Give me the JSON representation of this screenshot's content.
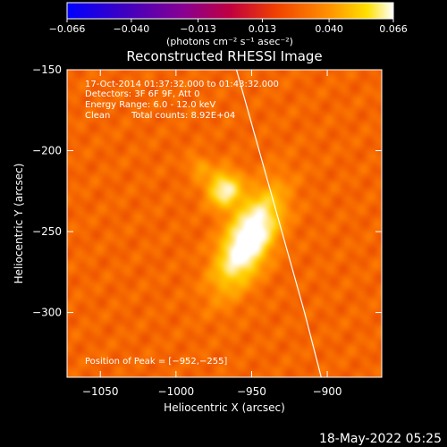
{
  "chart_data": {
    "type": "heatmap",
    "title": "Reconstructed RHESSI Image",
    "xlabel": "Heliocentric X (arcsec)",
    "ylabel": "Heliocentric Y (arcsec)",
    "xlim": [
      -1072,
      -864
    ],
    "ylim": [
      -340,
      -150
    ],
    "x_ticks": [
      -1050,
      -1000,
      -950,
      -900
    ],
    "x_tick_labels": [
      "−1050",
      "−1000",
      "−950",
      "−900"
    ],
    "y_ticks": [
      -150,
      -200,
      -250,
      -300
    ],
    "y_tick_labels": [
      "−150",
      "−200",
      "−250",
      "−300"
    ],
    "colorbar": {
      "min": -0.066,
      "max": 0.066,
      "ticks": [
        -0.066,
        -0.04,
        -0.013,
        0.013,
        0.04,
        0.066
      ],
      "tick_labels": [
        "−0.066",
        "−0.040",
        "−0.013",
        "0.013",
        "0.040",
        "0.066"
      ],
      "unit_label": "(photons cm⁻² s⁻¹ asec⁻²)",
      "colors": [
        "#0000ff",
        "#5a00a0",
        "#a00060",
        "#e03000",
        "#ff8000",
        "#ffd000",
        "#ffffff"
      ]
    },
    "annotations": {
      "time_range": "17-Oct-2014 01:37:32.000 to 01:43:32.000",
      "detectors": "Detectors: 3F 6F 9F, Att 0",
      "energy": "Energy Range: 6.0 - 12.0 keV",
      "clean_label": "Clean",
      "total_counts": "Total counts: 8.92E+04",
      "peak_label": "Position of Peak = [−952,−255]"
    },
    "peak": [
      -952,
      -255
    ],
    "sources": [
      {
        "x": -952,
        "y": -255,
        "sx": 10,
        "sy": 22,
        "angle": 30,
        "amplitude": 0.066
      },
      {
        "x": -968,
        "y": -224,
        "sx": 8,
        "sy": 8,
        "angle": 0,
        "amplitude": 0.046
      },
      {
        "x": -985,
        "y": -210,
        "sx": 5,
        "sy": 5,
        "angle": 0,
        "amplitude": 0.016
      }
    ],
    "limb": [
      [
        -960,
        -150
      ],
      [
        -945,
        -200
      ],
      [
        -930,
        -250
      ],
      [
        -915,
        -300
      ],
      [
        -904,
        -340
      ]
    ]
  },
  "footer": {
    "timestamp": "18-May-2022 05:25"
  }
}
